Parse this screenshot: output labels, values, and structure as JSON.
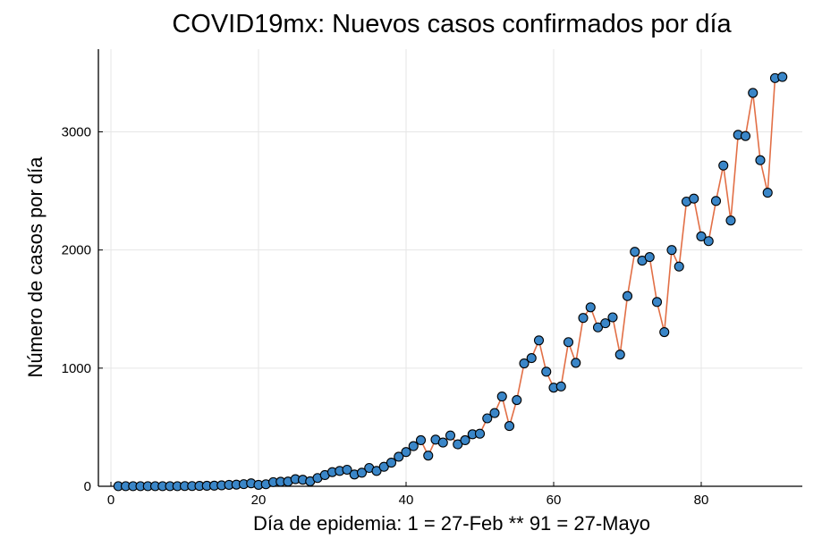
{
  "chart_data": {
    "type": "line",
    "title": "COVID19mx: Nuevos casos confirmados por día",
    "xlabel": "Día de epidemia: 1 = 27-Feb ** 91 = 27-Mayo",
    "ylabel": "Número de casos por día",
    "xlim": [
      -1.7,
      93.7
    ],
    "ylim": [
      0,
      3700
    ],
    "xticks": [
      0,
      20,
      40,
      60,
      80
    ],
    "yticks": [
      0,
      1000,
      2000,
      3000
    ],
    "grid": true,
    "legend": "none",
    "line_color": "#e26f46",
    "marker_color": "#3a86c8",
    "marker_edge_color": "#000000",
    "x": [
      1,
      2,
      3,
      4,
      5,
      6,
      7,
      8,
      9,
      10,
      11,
      12,
      13,
      14,
      15,
      16,
      17,
      18,
      19,
      20,
      21,
      22,
      23,
      24,
      25,
      26,
      27,
      28,
      29,
      30,
      31,
      32,
      33,
      34,
      35,
      36,
      37,
      38,
      39,
      40,
      41,
      42,
      43,
      44,
      45,
      46,
      47,
      48,
      49,
      50,
      51,
      52,
      53,
      54,
      55,
      56,
      57,
      58,
      59,
      60,
      61,
      62,
      63,
      64,
      65,
      66,
      67,
      68,
      69,
      70,
      71,
      72,
      73,
      74,
      75,
      76,
      77,
      78,
      79,
      80,
      81,
      82,
      83,
      84,
      85,
      86,
      87,
      88,
      89,
      90,
      91
    ],
    "y": [
      1,
      1,
      1,
      1,
      1,
      1,
      1,
      1,
      1,
      2,
      2,
      3,
      4,
      5,
      8,
      12,
      14,
      18,
      25,
      12,
      17,
      35,
      38,
      40,
      60,
      55,
      42,
      70,
      95,
      120,
      130,
      140,
      100,
      115,
      155,
      130,
      165,
      200,
      250,
      290,
      340,
      390,
      260,
      395,
      370,
      430,
      355,
      390,
      440,
      445,
      575,
      620,
      760,
      510,
      730,
      1040,
      1085,
      1235,
      970,
      835,
      845,
      1220,
      1045,
      1425,
      1515,
      1345,
      1380,
      1430,
      1115,
      1610,
      1985,
      1910,
      1940,
      1560,
      1305,
      2000,
      1860,
      2410,
      2435,
      2115,
      2075,
      2415,
      2715,
      2250,
      2975,
      2965,
      3330,
      2760,
      2485,
      3455,
      3465
    ]
  }
}
